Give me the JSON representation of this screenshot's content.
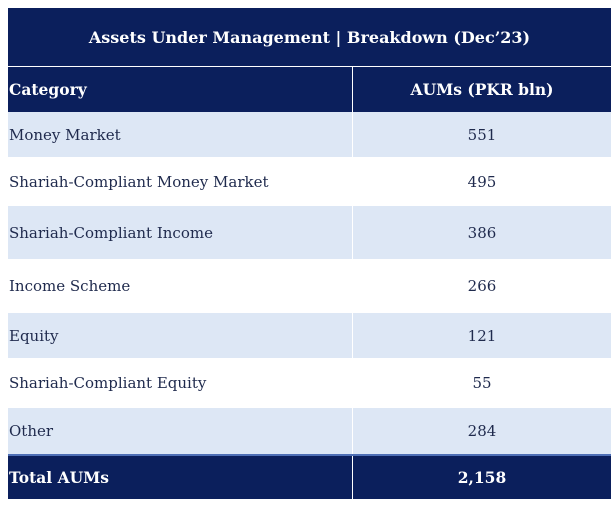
{
  "title": "Assets Under Management | Breakdown (Dec’23)",
  "chart_data": {
    "type": "table",
    "columns": [
      "Category",
      "AUMs (PKR bln)"
    ],
    "rows": [
      {
        "category": "Money Market",
        "value": "551"
      },
      {
        "category": "Shariah-Compliant Money Market",
        "value": "495"
      },
      {
        "category": "Shariah-Compliant Income",
        "value": "386"
      },
      {
        "category": "Income Scheme",
        "value": "266"
      },
      {
        "category": "Equity",
        "value": "121"
      },
      {
        "category": "Shariah-Compliant Equity",
        "value": "55"
      },
      {
        "category": "Other",
        "value": "284"
      }
    ],
    "total": {
      "label": "Total AUMs",
      "value": "2,158"
    }
  },
  "colors": {
    "header_bg": "#0b1f5c",
    "shaded_row": "#dde7f5",
    "text": "#1f2a4d"
  }
}
